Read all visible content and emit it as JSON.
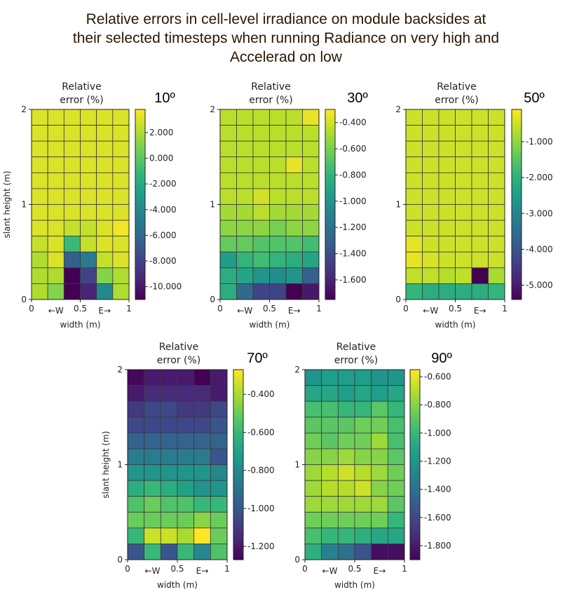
{
  "figure": {
    "title_lines": [
      "Relative errors in cell-level irradiance on module backsides at",
      "their selected timesteps when running Radiance on very high and",
      "Accelerad on low"
    ],
    "title_color": "#2b1600"
  },
  "chart_data": [
    {
      "type": "heatmap",
      "panel_label": "10º",
      "colorbar_title": [
        "Relative",
        "error (%)"
      ],
      "xlabel": "width (m)",
      "ylabel": "slant height (m)",
      "x_ticks": [
        "0",
        "←W",
        "0.5",
        "E→",
        "1"
      ],
      "y_ticks": [
        "0",
        "1",
        "2"
      ],
      "xlim": [
        0,
        1
      ],
      "ylim": [
        0,
        2
      ],
      "colorbar_range": [
        -11.0,
        3.8
      ],
      "colorbar_ticks": [
        2.0,
        0.0,
        -2.0,
        -4.0,
        -6.0,
        -8.0,
        -10.0
      ],
      "colorbar_tick_labels": [
        "2.000",
        "0.000",
        "-2.000",
        "-4.000",
        "-6.000",
        "-8.000",
        "-10.000"
      ],
      "rows": 12,
      "cols": 6,
      "values_top_to_bottom": [
        [
          3.0,
          3.0,
          3.0,
          3.0,
          3.0,
          3.0
        ],
        [
          3.0,
          3.0,
          3.0,
          3.0,
          3.0,
          3.0
        ],
        [
          3.0,
          3.0,
          3.0,
          3.0,
          3.0,
          3.0
        ],
        [
          3.0,
          3.0,
          3.0,
          3.0,
          3.0,
          3.0
        ],
        [
          3.0,
          3.0,
          3.0,
          3.0,
          3.0,
          3.0
        ],
        [
          3.0,
          3.0,
          3.0,
          3.0,
          3.0,
          3.0
        ],
        [
          3.0,
          3.0,
          3.0,
          3.0,
          3.0,
          3.0
        ],
        [
          3.0,
          3.0,
          2.5,
          2.5,
          3.0,
          3.5
        ],
        [
          2.5,
          3.0,
          -1.0,
          2.5,
          3.0,
          3.0
        ],
        [
          2.0,
          3.0,
          -6.5,
          -5.0,
          2.5,
          3.0
        ],
        [
          2.0,
          2.0,
          -11.0,
          -8.0,
          1.0,
          2.0
        ],
        [
          2.0,
          1.0,
          -11.0,
          -9.5,
          -4.0,
          2.0
        ]
      ]
    },
    {
      "type": "heatmap",
      "panel_label": "30º",
      "colorbar_title": [
        "Relative",
        "error (%)"
      ],
      "xlabel": "width (m)",
      "x_ticks": [
        "0",
        "←W",
        "0.5",
        "E→",
        "1"
      ],
      "y_ticks": [
        "0",
        "1",
        "2"
      ],
      "xlim": [
        0,
        1
      ],
      "ylim": [
        0,
        2
      ],
      "colorbar_range": [
        -1.75,
        -0.3
      ],
      "colorbar_ticks": [
        -0.4,
        -0.6,
        -0.8,
        -1.0,
        -1.2,
        -1.4,
        -1.6
      ],
      "colorbar_tick_labels": [
        "-0.400",
        "-0.600",
        "-0.800",
        "-1.000",
        "-1.200",
        "-1.400",
        "-1.600"
      ],
      "rows": 12,
      "cols": 6,
      "values_top_to_bottom": [
        [
          -0.45,
          -0.45,
          -0.45,
          -0.45,
          -0.45,
          -0.35
        ],
        [
          -0.45,
          -0.45,
          -0.45,
          -0.45,
          -0.45,
          -0.45
        ],
        [
          -0.45,
          -0.45,
          -0.45,
          -0.45,
          -0.45,
          -0.45
        ],
        [
          -0.45,
          -0.45,
          -0.45,
          -0.45,
          -0.35,
          -0.45
        ],
        [
          -0.45,
          -0.45,
          -0.45,
          -0.45,
          -0.45,
          -0.45
        ],
        [
          -0.45,
          -0.45,
          -0.4,
          -0.45,
          -0.45,
          -0.45
        ],
        [
          -0.5,
          -0.5,
          -0.45,
          -0.5,
          -0.5,
          -0.5
        ],
        [
          -0.55,
          -0.55,
          -0.55,
          -0.6,
          -0.55,
          -0.55
        ],
        [
          -0.65,
          -0.65,
          -0.7,
          -0.7,
          -0.7,
          -0.75
        ],
        [
          -0.95,
          -0.8,
          -0.75,
          -0.8,
          -0.85,
          -0.9
        ],
        [
          -0.85,
          -0.9,
          -1.0,
          -1.05,
          -1.0,
          -1.3
        ],
        [
          -0.85,
          -1.25,
          -1.45,
          -1.45,
          -1.75,
          -1.65
        ]
      ]
    },
    {
      "type": "heatmap",
      "panel_label": "50º",
      "colorbar_title": [
        "Relative",
        "error (%)"
      ],
      "xlabel": "width (m)",
      "x_ticks": [
        "0",
        "←W",
        "0.5",
        "E→",
        "1"
      ],
      "y_ticks": [
        "0",
        "1",
        "2"
      ],
      "xlim": [
        0,
        1
      ],
      "ylim": [
        0,
        2
      ],
      "colorbar_range": [
        -5.4,
        -0.1
      ],
      "colorbar_ticks": [
        -1.0,
        -2.0,
        -3.0,
        -4.0,
        -5.0
      ],
      "colorbar_tick_labels": [
        "-1.000",
        "-2.000",
        "-3.000",
        "-4.000",
        "-5.000"
      ],
      "rows": 12,
      "cols": 6,
      "values_top_to_bottom": [
        [
          -0.5,
          -0.5,
          -0.5,
          -0.5,
          -0.5,
          -0.5
        ],
        [
          -0.5,
          -0.5,
          -0.5,
          -0.5,
          -0.5,
          -0.5
        ],
        [
          -0.5,
          -0.5,
          -0.5,
          -0.5,
          -0.5,
          -0.5
        ],
        [
          -0.5,
          -0.5,
          -0.5,
          -0.5,
          -0.5,
          -0.5
        ],
        [
          -0.5,
          -0.5,
          -0.5,
          -0.5,
          -0.5,
          -0.5
        ],
        [
          -0.5,
          -0.5,
          -0.5,
          -0.5,
          -0.5,
          -0.5
        ],
        [
          -0.5,
          -0.5,
          -0.5,
          -0.5,
          -0.5,
          -0.5
        ],
        [
          -0.5,
          -0.5,
          -0.5,
          -0.5,
          -0.5,
          -0.5
        ],
        [
          -0.3,
          -0.5,
          -0.5,
          -0.5,
          -0.5,
          -0.5
        ],
        [
          -0.3,
          -0.4,
          -0.5,
          -0.5,
          -0.5,
          -0.5
        ],
        [
          -0.6,
          -0.6,
          -0.7,
          -0.6,
          -5.4,
          -0.8
        ],
        [
          -1.9,
          -2.1,
          -2.1,
          -2.1,
          -2.1,
          -1.9
        ]
      ]
    },
    {
      "type": "heatmap",
      "panel_label": "70º",
      "colorbar_title": [
        "Relative",
        "error (%)"
      ],
      "xlabel": "width (m)",
      "ylabel": "slant height (m)",
      "x_ticks": [
        "0",
        "←W",
        "0.5",
        "E→",
        "1"
      ],
      "y_ticks": [
        "0",
        "1",
        "2"
      ],
      "xlim": [
        0,
        1
      ],
      "ylim": [
        0,
        2
      ],
      "colorbar_range": [
        -1.27,
        -0.27
      ],
      "colorbar_ticks": [
        -0.4,
        -0.6,
        -0.8,
        -1.0,
        -1.2
      ],
      "colorbar_tick_labels": [
        "-0.400",
        "-0.600",
        "-0.800",
        "-1.000",
        "-1.200"
      ],
      "rows": 12,
      "cols": 6,
      "values_top_to_bottom": [
        [
          -1.25,
          -1.2,
          -1.2,
          -1.2,
          -1.27,
          -1.2
        ],
        [
          -1.2,
          -1.15,
          -1.15,
          -1.15,
          -1.15,
          -1.2
        ],
        [
          -1.1,
          -1.05,
          -1.05,
          -1.1,
          -1.1,
          -1.05
        ],
        [
          -1.05,
          -1.05,
          -1.05,
          -1.05,
          -1.05,
          -1.0
        ],
        [
          -0.95,
          -0.95,
          -0.95,
          -0.95,
          -0.95,
          -0.95
        ],
        [
          -0.85,
          -0.85,
          -0.85,
          -0.85,
          -0.85,
          -1.0
        ],
        [
          -0.75,
          -0.75,
          -0.75,
          -0.75,
          -0.75,
          -0.8
        ],
        [
          -0.65,
          -0.6,
          -0.65,
          -0.7,
          -0.75,
          -0.75
        ],
        [
          -0.55,
          -0.5,
          -0.55,
          -0.55,
          -0.6,
          -0.6
        ],
        [
          -0.5,
          -0.5,
          -0.5,
          -0.5,
          -0.45,
          -0.5
        ],
        [
          -0.6,
          -0.35,
          -0.35,
          -0.4,
          -0.27,
          -0.5
        ],
        [
          -1.0,
          -0.6,
          -1.0,
          -0.6,
          -0.8,
          -0.55
        ]
      ]
    },
    {
      "type": "heatmap",
      "panel_label": "90º",
      "colorbar_title": [
        "Relative",
        "error (%)"
      ],
      "xlabel": "width (m)",
      "x_ticks": [
        "0",
        "←W",
        "0.5",
        "E→",
        "1"
      ],
      "y_ticks": [
        "0",
        "1",
        "2"
      ],
      "xlim": [
        0,
        1
      ],
      "ylim": [
        0,
        2
      ],
      "colorbar_range": [
        -1.9,
        -0.55
      ],
      "colorbar_ticks": [
        -0.6,
        -0.8,
        -1.0,
        -1.2,
        -1.4,
        -1.6,
        -1.8
      ],
      "colorbar_tick_labels": [
        "-0.600",
        "-0.800",
        "-1.000",
        "-1.200",
        "-1.400",
        "-1.600",
        "-1.800"
      ],
      "rows": 12,
      "cols": 6,
      "values_top_to_bottom": [
        [
          -1.2,
          -1.15,
          -1.15,
          -1.15,
          -1.2,
          -1.2
        ],
        [
          -1.1,
          -1.1,
          -1.15,
          -1.1,
          -1.15,
          -1.1
        ],
        [
          -0.95,
          -0.95,
          -1.0,
          -1.0,
          -0.9,
          -1.0
        ],
        [
          -0.9,
          -0.9,
          -0.9,
          -0.85,
          -0.85,
          -0.95
        ],
        [
          -0.85,
          -0.9,
          -0.85,
          -0.85,
          -0.75,
          -0.95
        ],
        [
          -0.8,
          -0.8,
          -0.75,
          -0.8,
          -0.8,
          -0.9
        ],
        [
          -0.75,
          -0.7,
          -0.65,
          -0.7,
          -0.75,
          -0.85
        ],
        [
          -0.75,
          -0.7,
          -0.7,
          -0.65,
          -0.8,
          -0.85
        ],
        [
          -0.75,
          -0.75,
          -0.75,
          -0.75,
          -0.75,
          -0.9
        ],
        [
          -0.85,
          -0.85,
          -0.85,
          -0.85,
          -0.85,
          -1.0
        ],
        [
          -0.95,
          -1.0,
          -1.0,
          -1.05,
          -1.1,
          -1.1
        ],
        [
          -1.05,
          -1.3,
          -1.4,
          -1.55,
          -1.85,
          -1.85
        ]
      ]
    }
  ]
}
